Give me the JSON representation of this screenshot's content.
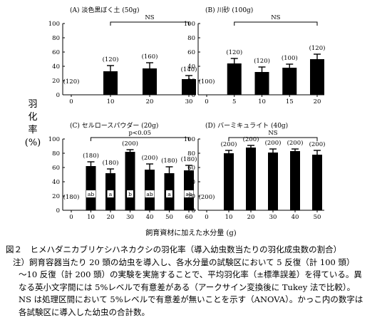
{
  "figure": {
    "ylabel": [
      "羽",
      "化",
      "率",
      "(%)"
    ],
    "xlabel": "飼育資材に加えた水分量 (g)"
  },
  "chart_data": [
    {
      "id": "A",
      "type": "bar",
      "title": "(A) 淡色黒ぼく土 (50g)",
      "categories": [
        "0",
        "10",
        "20",
        "30"
      ],
      "values": [
        0,
        33,
        37,
        22
      ],
      "errors": [
        0,
        8,
        8,
        5
      ],
      "n_labels": [
        "(120)",
        "(120)",
        "(160)",
        "(140)"
      ],
      "sig_letters": [],
      "test_label": "NS",
      "ylim": [
        0,
        100
      ],
      "yticks": [
        "0",
        "20",
        "40",
        "60",
        "80",
        "100"
      ]
    },
    {
      "id": "B",
      "type": "bar",
      "title": "(B) 川砂 (100g)",
      "categories": [
        "0",
        "5",
        "10",
        "15",
        "20"
      ],
      "values": [
        0,
        44,
        32,
        38,
        50
      ],
      "errors": [
        0,
        7,
        7,
        5,
        7
      ],
      "n_labels": [
        "(100)",
        "(120)",
        "(120)",
        "(100)",
        "(120)"
      ],
      "sig_letters": [],
      "test_label": "NS",
      "ylim": [
        0,
        100
      ],
      "yticks": [
        "0",
        "20",
        "40",
        "60",
        "80",
        "100"
      ]
    },
    {
      "id": "C",
      "type": "bar",
      "title": "(C) セルロースパウダー (20g)",
      "categories": [
        "0",
        "10",
        "20",
        "30",
        "40",
        "50",
        "60"
      ],
      "values": [
        0,
        62,
        52,
        82,
        57,
        52,
        56
      ],
      "errors": [
        0,
        6,
        6,
        3,
        8,
        9,
        7
      ],
      "n_labels": [
        "(180)",
        "(180)",
        "(180)",
        "(200)",
        "(200)",
        "(180)",
        "(180)"
      ],
      "sig_letters": [
        "",
        "ab",
        "a",
        "b",
        "ab",
        "a",
        "ab"
      ],
      "test_label": "p<0.05",
      "ylim": [
        0,
        100
      ],
      "yticks": [
        "0",
        "20",
        "40",
        "60",
        "80",
        "100"
      ]
    },
    {
      "id": "D",
      "type": "bar",
      "title": "(D) バーミキュライト (40g)",
      "categories": [
        "0",
        "10",
        "20",
        "30",
        "40",
        "50"
      ],
      "values": [
        0,
        80,
        88,
        81,
        83,
        78
      ],
      "errors": [
        0,
        4,
        3,
        5,
        3,
        6
      ],
      "n_labels": [
        "(200)",
        "(200)",
        "(200)",
        "(200)",
        "(200)",
        "(200)"
      ],
      "sig_letters": [],
      "test_label": "NS",
      "ylim": [
        0,
        100
      ],
      "yticks": [
        "0",
        "20",
        "40",
        "60",
        "80",
        "100"
      ]
    }
  ],
  "caption": {
    "title": "図２　ヒメハダニカブリケシハネカクシの羽化率（導入幼虫数当たりの羽化成虫数の割合）",
    "notes": [
      "注）飼育容器当たり 20 頭の幼虫を導入し、各水分量の試験区において 5 反復（計 100 頭）",
      "～10 反復（計 200 頭）の実験を実施することで、平均羽化率（±標準誤差）を得ている。異",
      "なる英小文字間には 5%レベルで有意差がある（アークサイン変換後に Tukey 法で比較）。",
      "NS は処理区間において 5%レベルで有意差が無いことを示す（ANOVA）。かっこ内の数字は",
      "各試験区に導入した幼虫の合計数。"
    ]
  }
}
